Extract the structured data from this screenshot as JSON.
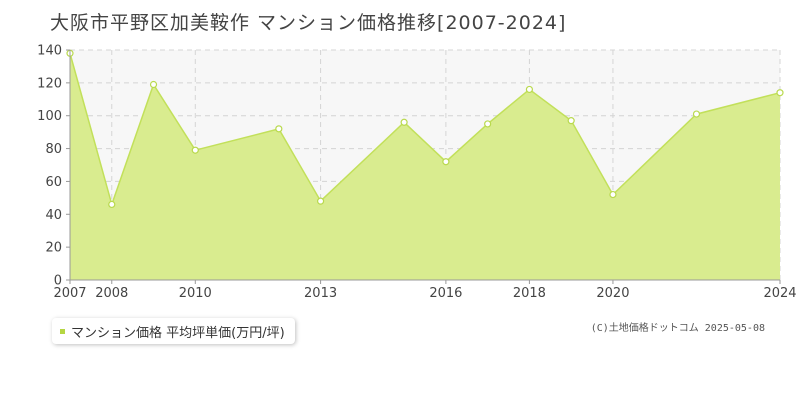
{
  "page": {
    "title": "大阪市平野区加美鞍作 マンション価格推移[2007-2024]",
    "credit": "(C)土地価格ドットコム 2025-05-08"
  },
  "colors": {
    "fill": "#d9ec8f",
    "line": "#c2e05a",
    "marker_fill": "#ffffff",
    "marker_stroke": "#b9d94e",
    "plot_bg": "#f7f7f7",
    "grid": "#d4d4d4",
    "axis": "#999999",
    "legend_marker": "#b5d642"
  },
  "chart_data": {
    "type": "area",
    "x": [
      2007,
      2008,
      2009,
      2010,
      2012,
      2013,
      2015,
      2016,
      2017,
      2018,
      2019,
      2020,
      2022,
      2024
    ],
    "series": [
      {
        "name": "マンション価格 平均坪単価(万円/坪)",
        "values": [
          138,
          46,
          119,
          79,
          92,
          48,
          96,
          72,
          95,
          116,
          97,
          52,
          101,
          114
        ]
      }
    ],
    "x_ticks": [
      2007,
      2008,
      2010,
      2013,
      2016,
      2018,
      2020,
      2024
    ],
    "y_ticks": [
      0,
      20,
      40,
      60,
      80,
      100,
      120,
      140
    ],
    "xlim": [
      2007,
      2024
    ],
    "ylim": [
      0,
      140
    ],
    "grid": true,
    "legend_position": "bottom-left"
  }
}
